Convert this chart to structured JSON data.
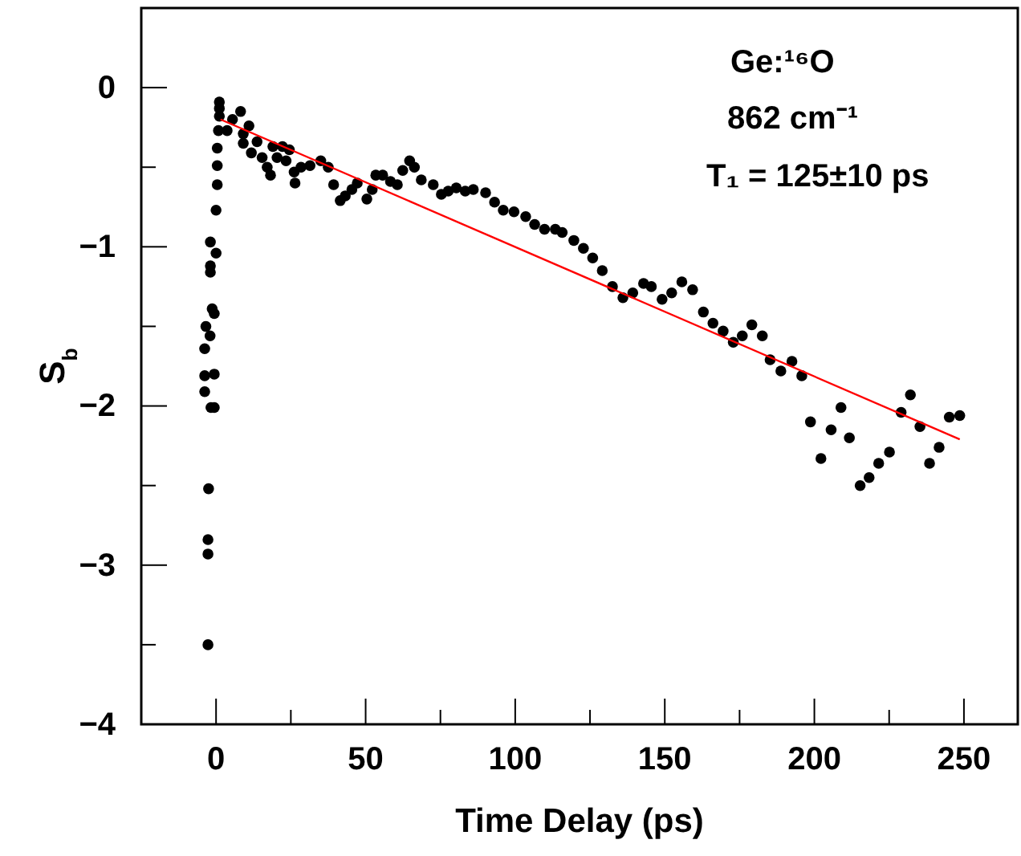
{
  "chart_data": {
    "type": "scatter",
    "xlabel": "Time Delay (ps)",
    "ylabel": "S$_{b}$",
    "annotations": [
      "Ge:¹⁶O",
      "862 cm⁻¹",
      "T₁ = 125±10 ps"
    ],
    "xlim": [
      -25,
      268
    ],
    "ylim": [
      -4,
      0.5
    ],
    "xticks": [
      0,
      {
        "value": 25,
        "label": null
      },
      50,
      {
        "value": 75,
        "label": null
      },
      100,
      {
        "value": 125,
        "label": null
      },
      150,
      {
        "value": 175,
        "label": null
      },
      200,
      {
        "value": 225,
        "label": null
      },
      250
    ],
    "yticks": [
      -4,
      {
        "value": -3.5,
        "label": null
      },
      -3,
      {
        "value": -2.5,
        "label": null
      },
      -2,
      {
        "value": -1.5,
        "label": null
      },
      -1,
      {
        "value": -0.5,
        "label": null
      },
      0
    ],
    "grid": false,
    "series": [
      {
        "color": "#000000",
        "marker": "circle",
        "x": [
          -2.7,
          -2.7,
          -2.7,
          -2.5,
          -1.7,
          -0.6,
          -3.8,
          -3.8,
          -0.6,
          -3.8,
          -2,
          -3.4,
          -0.6,
          -1.3,
          -1.9,
          -1.9,
          0,
          -1.9,
          0,
          0.4,
          0.4,
          0.4,
          0.8,
          1.1,
          1.1,
          1.1,
          3.7,
          5.5,
          8.2,
          9.1,
          11,
          9.1,
          11.8,
          13.7,
          15.4,
          17.1,
          18.2,
          19,
          20.4,
          22.2,
          23.4,
          24.5,
          26.1,
          26.4,
          28.4,
          31.4,
          35,
          37.5,
          39.3,
          41.5,
          43.2,
          45.4,
          47.2,
          50.4,
          52.2,
          53.4,
          55.7,
          58.3,
          60.6,
          62.4,
          64.7,
          66.3,
          68.6,
          72.6,
          75.3,
          77.6,
          80.3,
          83.3,
          86,
          90.1,
          93.1,
          96,
          99.6,
          103.5,
          106.5,
          109.8,
          113.4,
          115.7,
          119.6,
          122.8,
          125.9,
          129.1,
          132.5,
          136,
          139.3,
          142.9,
          145.5,
          149.1,
          152.3,
          155.7,
          159.3,
          162.9,
          166.1,
          169.5,
          172.9,
          175.9,
          179.1,
          182.6,
          185.2,
          188.8,
          192.5,
          195.8,
          198.7,
          202.2,
          205.6,
          208.9,
          211.7,
          215.3,
          218.3,
          221.5,
          225.1,
          229,
          232.1,
          235.3,
          238.5,
          241.7,
          245.1,
          248.6
        ],
        "values": [
          -3.5,
          -2.93,
          -2.84,
          -2.52,
          -2.01,
          -2.01,
          -1.91,
          -1.81,
          -1.8,
          -1.64,
          -1.56,
          -1.5,
          -1.42,
          -1.39,
          -1.16,
          -1.12,
          -1.04,
          -0.97,
          -0.77,
          -0.61,
          -0.49,
          -0.38,
          -0.27,
          -0.18,
          -0.13,
          -0.09,
          -0.27,
          -0.2,
          -0.15,
          -0.29,
          -0.24,
          -0.35,
          -0.41,
          -0.34,
          -0.44,
          -0.5,
          -0.55,
          -0.37,
          -0.44,
          -0.37,
          -0.46,
          -0.39,
          -0.53,
          -0.6,
          -0.5,
          -0.49,
          -0.46,
          -0.5,
          -0.61,
          -0.71,
          -0.68,
          -0.64,
          -0.6,
          -0.7,
          -0.64,
          -0.55,
          -0.55,
          -0.59,
          -0.61,
          -0.52,
          -0.46,
          -0.5,
          -0.58,
          -0.61,
          -0.67,
          -0.65,
          -0.63,
          -0.65,
          -0.64,
          -0.66,
          -0.72,
          -0.77,
          -0.78,
          -0.81,
          -0.86,
          -0.89,
          -0.89,
          -0.91,
          -0.96,
          -1.01,
          -1.07,
          -1.15,
          -1.25,
          -1.32,
          -1.29,
          -1.23,
          -1.25,
          -1.33,
          -1.29,
          -1.22,
          -1.27,
          -1.41,
          -1.48,
          -1.53,
          -1.6,
          -1.56,
          -1.49,
          -1.56,
          -1.71,
          -1.78,
          -1.72,
          -1.81,
          -2.1,
          -2.33,
          -2.15,
          -2.01,
          -2.2,
          -2.5,
          -2.45,
          -2.36,
          -2.29,
          -2.04,
          -1.93,
          -2.13,
          -2.36,
          -2.26,
          -2.07,
          -2.06
        ]
      },
      {
        "type": "line",
        "color": "#ff0000",
        "marker": "none",
        "x": [
          1.5,
          248.6
        ],
        "values": [
          -0.2,
          -2.21
        ]
      }
    ]
  }
}
